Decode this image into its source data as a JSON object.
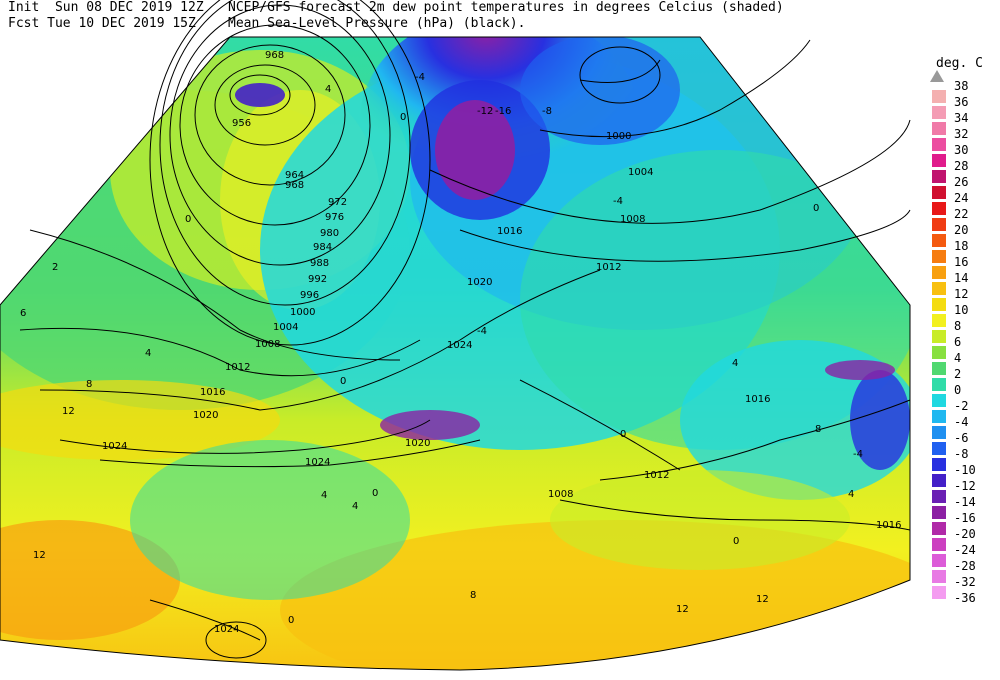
{
  "header": {
    "init_line": "Init  Sun 08 DEC 2019 12Z",
    "fcst_line": "Fcst Tue 10 DEC 2019 15Z",
    "title_line1": "NCEP/GFS forecast 2m dew point temperatures in degrees Celcius (shaded)",
    "title_line2": "Mean Sea-Level Pressure (hPa) (black)."
  },
  "legend": {
    "unit": "deg. C",
    "entries": [
      {
        "label": "38",
        "color": "#c0c0c0"
      },
      {
        "label": "36",
        "color": "#f4b0b0"
      },
      {
        "label": "34",
        "color": "#f49cb4"
      },
      {
        "label": "32",
        "color": "#f07aa8"
      },
      {
        "label": "30",
        "color": "#ec4da0"
      },
      {
        "label": "28",
        "color": "#e01c8c"
      },
      {
        "label": "26",
        "color": "#c0146e"
      },
      {
        "label": "24",
        "color": "#d01030"
      },
      {
        "label": "22",
        "color": "#e81818"
      },
      {
        "label": "20",
        "color": "#f03c14"
      },
      {
        "label": "18",
        "color": "#f45a10"
      },
      {
        "label": "16",
        "color": "#f67c10"
      },
      {
        "label": "14",
        "color": "#f8a010"
      },
      {
        "label": "12",
        "color": "#f8c010"
      },
      {
        "label": "10",
        "color": "#f4dc10"
      },
      {
        "label": "8",
        "color": "#f2f020"
      },
      {
        "label": "6",
        "color": "#c8ec28"
      },
      {
        "label": "4",
        "color": "#88e040"
      },
      {
        "label": "2",
        "color": "#50d870"
      },
      {
        "label": "0",
        "color": "#30dca8"
      },
      {
        "label": "-2",
        "color": "#20d8e0"
      },
      {
        "label": "-4",
        "color": "#20b8f0"
      },
      {
        "label": "-6",
        "color": "#2090f0"
      },
      {
        "label": "-8",
        "color": "#2060f0"
      },
      {
        "label": "-10",
        "color": "#2830e0"
      },
      {
        "label": "-12",
        "color": "#4420c8"
      },
      {
        "label": "-14",
        "color": "#6a20b4"
      },
      {
        "label": "-16",
        "color": "#8c20a4"
      },
      {
        "label": "-20",
        "color": "#b02aa8"
      },
      {
        "label": "-24",
        "color": "#cc40c0"
      },
      {
        "label": "-28",
        "color": "#dc5cd8"
      },
      {
        "label": "-32",
        "color": "#e87ae4"
      },
      {
        "label": "-36",
        "color": "#f49cf0"
      }
    ]
  },
  "isobar_labels": [
    "968",
    "956",
    "964",
    "968",
    "972",
    "976",
    "980",
    "984",
    "988",
    "992",
    "996",
    "1000",
    "1004",
    "1008",
    "1012",
    "1016",
    "1020",
    "1024",
    "1020",
    "1024",
    "1024",
    "1020",
    "1016",
    "1012",
    "1008",
    "1004",
    "1000",
    "1012",
    "1008",
    "1016",
    "1012",
    "1016",
    "1024"
  ],
  "dewpoint_labels": [
    "0",
    "4",
    "0",
    "-4",
    "0",
    "4",
    "2",
    "6",
    "8",
    "12",
    "4",
    "0",
    "4",
    "8",
    "12",
    "0",
    "-4",
    "-8",
    "-12",
    "-16",
    "-4",
    "0",
    "4",
    "0",
    "-4",
    "8",
    "12",
    "12",
    "4",
    "0"
  ]
}
